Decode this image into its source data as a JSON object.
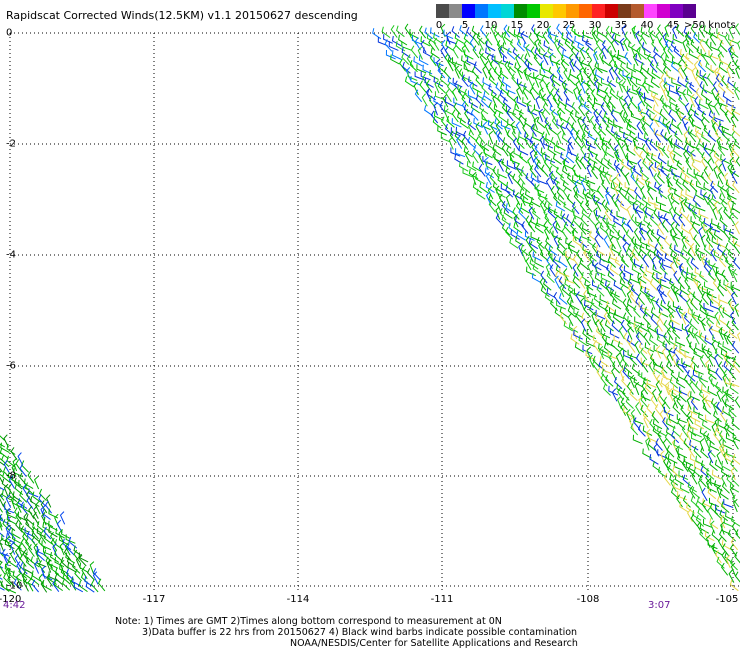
{
  "title": "Rapidscat Corrected Winds(12.5KM) v1.1 20150627 descending",
  "legend": {
    "colors": [
      "#4b4b4b",
      "#8a8a8a",
      "#0000ff",
      "#0077ff",
      "#00bfff",
      "#00d6d6",
      "#008c00",
      "#00c800",
      "#e8e800",
      "#ffc800",
      "#ff9900",
      "#ff6600",
      "#ff2222",
      "#cc0000",
      "#7a3b1a",
      "#b45a2d",
      "#ff44ff",
      "#d000d0",
      "#8000c0",
      "#5a0090"
    ],
    "ticks": [
      "0",
      "5",
      "10",
      "15",
      "20",
      "25",
      "30",
      "35",
      "40",
      "45"
    ],
    "unit": ">50 knots"
  },
  "x_axis": {
    "labels": [
      "-120",
      "-117",
      "-114",
      "-111",
      "-108",
      "-105"
    ]
  },
  "y_axis": {
    "labels": [
      "0",
      "-2",
      "-4",
      "-6",
      "-8",
      "-10"
    ]
  },
  "times": {
    "left": "4:42",
    "right": "3:07"
  },
  "notes": [
    "Note: 1) Times are GMT 2)Times along bottom correspond to measurement at 0N",
    "3)Data buffer is 22 hrs from 20150627 4) Black wind barbs indicate possible contamination",
    "NOAA/NESDIS/Center for Satellite Applications and Research"
  ]
}
